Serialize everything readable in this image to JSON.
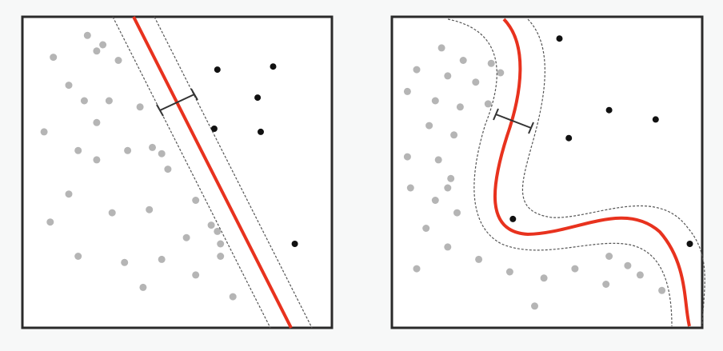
{
  "panels": [
    {
      "id": "linear",
      "kind": "linear-margin",
      "colors": {
        "boundary": "#e8321e",
        "margin": "#555555",
        "frame": "#2a2a2a",
        "positive": "#111111",
        "negative": "#b5b5b5"
      },
      "positive_points": [
        [
          0.63,
          0.17
        ],
        [
          0.81,
          0.16
        ],
        [
          0.76,
          0.26
        ],
        [
          0.62,
          0.36
        ],
        [
          0.77,
          0.37
        ],
        [
          0.88,
          0.73
        ]
      ],
      "negative_points": [
        [
          0.21,
          0.06
        ],
        [
          0.26,
          0.09
        ],
        [
          0.24,
          0.11
        ],
        [
          0.1,
          0.13
        ],
        [
          0.31,
          0.14
        ],
        [
          0.15,
          0.22
        ],
        [
          0.2,
          0.27
        ],
        [
          0.28,
          0.27
        ],
        [
          0.07,
          0.37
        ],
        [
          0.24,
          0.34
        ],
        [
          0.38,
          0.29
        ],
        [
          0.18,
          0.43
        ],
        [
          0.24,
          0.46
        ],
        [
          0.34,
          0.43
        ],
        [
          0.42,
          0.42
        ],
        [
          0.45,
          0.44
        ],
        [
          0.47,
          0.49
        ],
        [
          0.15,
          0.57
        ],
        [
          0.09,
          0.66
        ],
        [
          0.29,
          0.63
        ],
        [
          0.41,
          0.62
        ],
        [
          0.56,
          0.59
        ],
        [
          0.61,
          0.67
        ],
        [
          0.63,
          0.69
        ],
        [
          0.53,
          0.71
        ],
        [
          0.64,
          0.73
        ],
        [
          0.18,
          0.77
        ],
        [
          0.33,
          0.79
        ],
        [
          0.45,
          0.78
        ],
        [
          0.64,
          0.77
        ],
        [
          0.56,
          0.83
        ],
        [
          0.39,
          0.87
        ],
        [
          0.68,
          0.9
        ]
      ]
    },
    {
      "id": "nonlinear",
      "kind": "kernel-margin",
      "colors": {
        "boundary": "#e8321e",
        "margin": "#555555",
        "frame": "#2a2a2a",
        "positive": "#111111",
        "negative": "#b5b5b5"
      },
      "positive_points": [
        [
          0.54,
          0.07
        ],
        [
          0.7,
          0.3
        ],
        [
          0.85,
          0.33
        ],
        [
          0.57,
          0.39
        ],
        [
          0.39,
          0.65
        ],
        [
          0.96,
          0.73
        ]
      ],
      "negative_points": [
        [
          0.16,
          0.1
        ],
        [
          0.23,
          0.14
        ],
        [
          0.32,
          0.15
        ],
        [
          0.08,
          0.17
        ],
        [
          0.18,
          0.19
        ],
        [
          0.27,
          0.21
        ],
        [
          0.35,
          0.18
        ],
        [
          0.14,
          0.27
        ],
        [
          0.22,
          0.29
        ],
        [
          0.31,
          0.28
        ],
        [
          0.05,
          0.24
        ],
        [
          0.12,
          0.35
        ],
        [
          0.2,
          0.38
        ],
        [
          0.05,
          0.45
        ],
        [
          0.15,
          0.46
        ],
        [
          0.19,
          0.52
        ],
        [
          0.18,
          0.55
        ],
        [
          0.06,
          0.55
        ],
        [
          0.14,
          0.59
        ],
        [
          0.21,
          0.63
        ],
        [
          0.11,
          0.68
        ],
        [
          0.18,
          0.74
        ],
        [
          0.28,
          0.78
        ],
        [
          0.08,
          0.81
        ],
        [
          0.38,
          0.82
        ],
        [
          0.49,
          0.84
        ],
        [
          0.59,
          0.81
        ],
        [
          0.7,
          0.77
        ],
        [
          0.76,
          0.8
        ],
        [
          0.8,
          0.83
        ],
        [
          0.69,
          0.86
        ],
        [
          0.46,
          0.93
        ],
        [
          0.87,
          0.88
        ]
      ]
    }
  ]
}
